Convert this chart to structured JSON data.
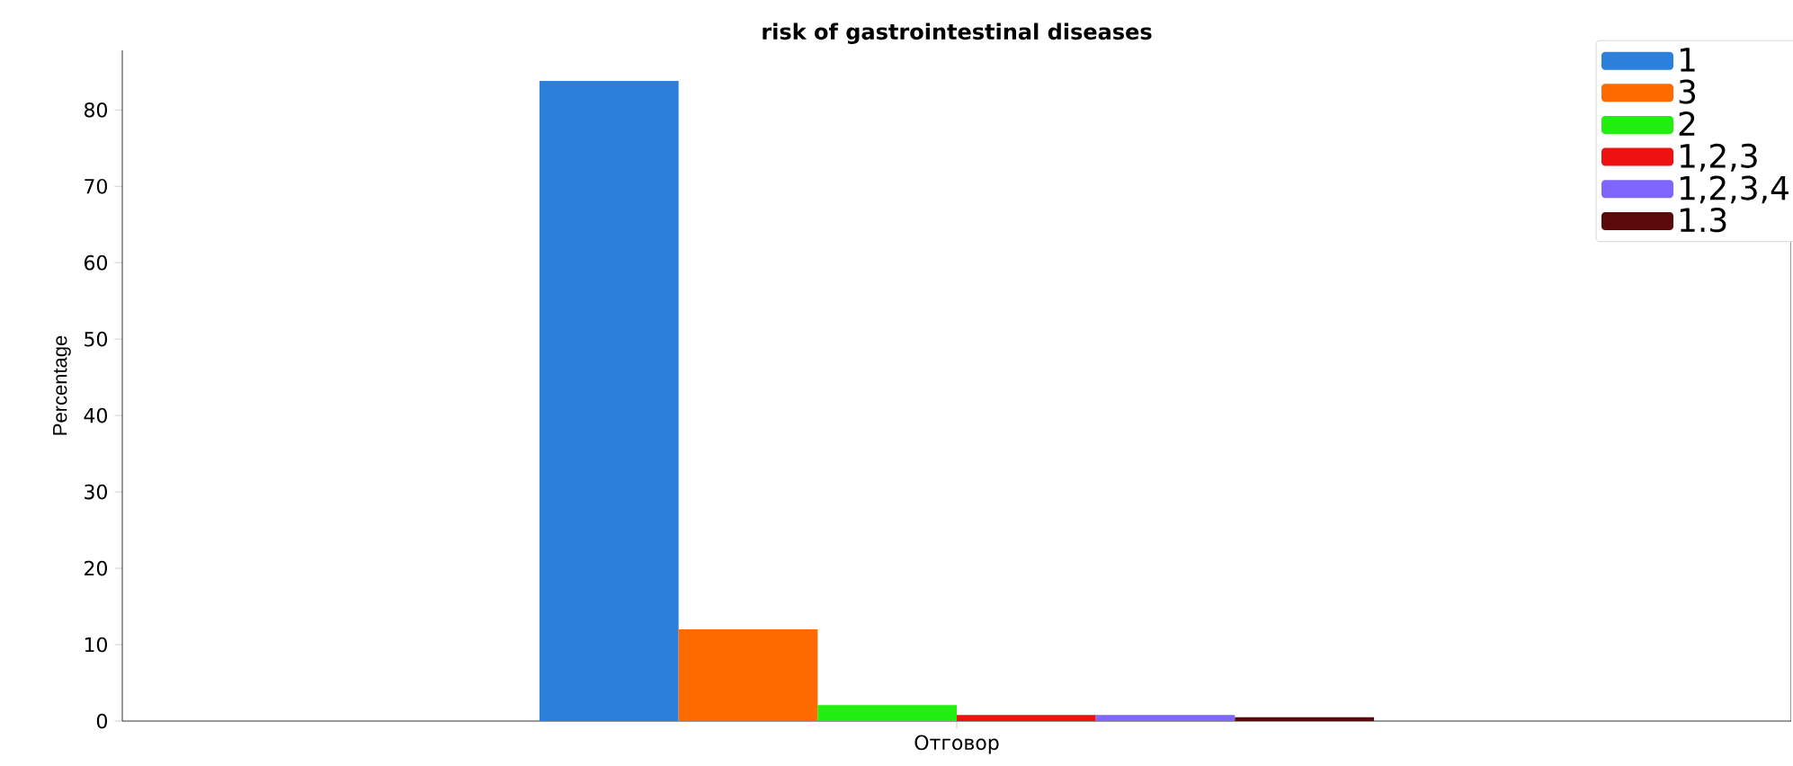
{
  "chart_data": {
    "type": "bar",
    "title": "risk of gastrointestinal diseases",
    "ylabel": "Percentage",
    "categories": [
      "Отговор"
    ],
    "series": [
      {
        "name": "1",
        "color": "#2b80dc",
        "values": [
          83.8
        ]
      },
      {
        "name": "3",
        "color": "#ff6a00",
        "values": [
          12.0
        ]
      },
      {
        "name": "2",
        "color": "#22ee11",
        "values": [
          2.1
        ]
      },
      {
        "name": "1,2,3",
        "color": "#ee1111",
        "values": [
          0.8
        ]
      },
      {
        "name": "1,2,3,4",
        "color": "#7f66ff",
        "values": [
          0.8
        ]
      },
      {
        "name": "1.3",
        "color": "#5a0a0a",
        "values": [
          0.5
        ]
      }
    ],
    "ylim": [
      0,
      87.8
    ],
    "yticks": [
      0,
      10,
      20,
      30,
      40,
      50,
      60,
      70,
      80
    ],
    "legend": "top right"
  }
}
